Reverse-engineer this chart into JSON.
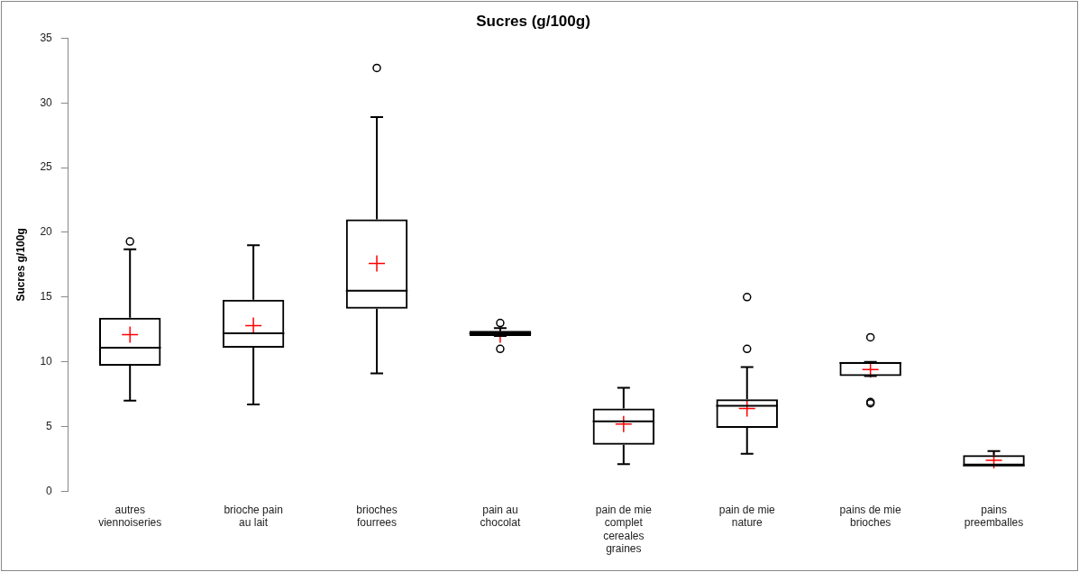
{
  "chart_data": {
    "type": "box",
    "title": "Sucres (g/100g)",
    "ylabel": "Sucres g/100g",
    "categories": [
      "autres viennoiseries",
      "brioche pain au lait",
      "brioches fourrees",
      "pain au chocolat",
      "pain de mie complet cereales graines",
      "pain de mie nature",
      "pains de mie brioches",
      "pains preemballes"
    ],
    "series": [
      {
        "color": "#000000",
        "boxes": [
          {
            "low": 7.0,
            "q1": 9.7,
            "median": 11.1,
            "q3": 13.4,
            "high": 18.7,
            "mean": 12.1,
            "outliers": [
              19.3
            ]
          },
          {
            "low": 6.7,
            "q1": 11.1,
            "median": 12.2,
            "q3": 14.8,
            "high": 19.0,
            "mean": 12.8
          },
          {
            "low": 9.1,
            "q1": 14.1,
            "median": 15.5,
            "q3": 21.0,
            "high": 28.9,
            "mean": 17.6,
            "outliers": [
              32.7
            ]
          },
          {
            "low": 12.0,
            "q1": 12.0,
            "median": 12.2,
            "q3": 12.4,
            "high": 12.6,
            "mean": 12.1,
            "outliers": [
              13.0,
              11.0
            ]
          },
          {
            "low": 2.1,
            "q1": 3.6,
            "median": 5.4,
            "q3": 6.4,
            "high": 8.0,
            "mean": 5.2
          },
          {
            "low": 2.9,
            "q1": 4.9,
            "median": 6.6,
            "q3": 7.1,
            "high": 9.6,
            "mean": 6.4,
            "outliers": [
              11.0,
              15.0
            ]
          },
          {
            "low": 8.9,
            "q1": 8.9,
            "median": 9.9,
            "q3": 10.0,
            "high": 10.0,
            "mean": 9.4,
            "outliers": [
              11.9,
              6.9,
              6.8
            ]
          },
          {
            "low": 2.0,
            "q1": 2.0,
            "median": 2.0,
            "q3": 2.8,
            "high": 3.1,
            "mean": 2.4
          }
        ]
      }
    ],
    "ylim": [
      0,
      35
    ],
    "yticks": [
      0,
      5,
      10,
      15,
      20,
      25,
      30,
      35
    ],
    "grid": false,
    "legend": false,
    "marker": "circle"
  }
}
